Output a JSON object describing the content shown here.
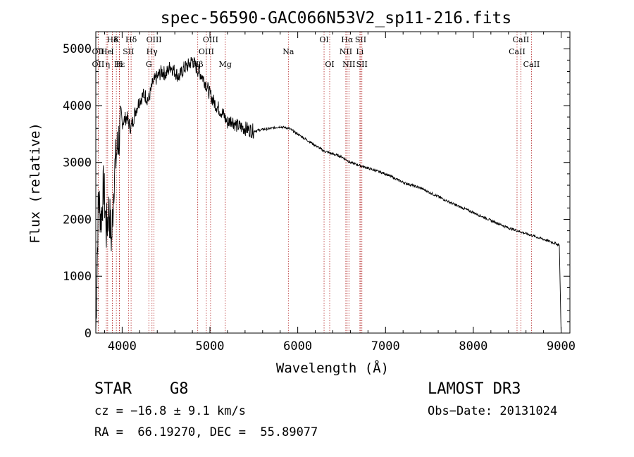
{
  "chart_data": {
    "type": "line",
    "title": "spec-56590-GAC066N53V2_sp11-216.fits",
    "xlabel": "Wavelength (Å)",
    "ylabel": "Flux (relative)",
    "xlim": [
      3700,
      9100
    ],
    "ylim": [
      0,
      5300
    ],
    "xticks": [
      4000,
      5000,
      6000,
      7000,
      8000,
      9000
    ],
    "yticks": [
      0,
      1000,
      2000,
      3000,
      4000,
      5000
    ],
    "series": [
      {
        "name": "flux",
        "x": [
          3700,
          3730,
          3760,
          3790,
          3820,
          3850,
          3880,
          3910,
          3940,
          3970,
          4000,
          4050,
          4100,
          4150,
          4200,
          4250,
          4300,
          4350,
          4400,
          4450,
          4500,
          4550,
          4600,
          4650,
          4700,
          4750,
          4800,
          4850,
          4900,
          4950,
          5000,
          5050,
          5100,
          5150,
          5200,
          5250,
          5300,
          5400,
          5500,
          5600,
          5700,
          5800,
          5900,
          6000,
          6100,
          6200,
          6300,
          6400,
          6500,
          6600,
          6700,
          6800,
          6900,
          7000,
          7200,
          7400,
          7600,
          7800,
          8000,
          8200,
          8400,
          8600,
          8800,
          8980,
          9000
        ],
        "y": [
          0,
          2400,
          2000,
          2600,
          1800,
          2200,
          1600,
          2800,
          3200,
          3500,
          3700,
          3800,
          3600,
          3900,
          4100,
          4200,
          4100,
          4400,
          4500,
          4600,
          4550,
          4700,
          4600,
          4500,
          4650,
          4700,
          4800,
          4650,
          4550,
          4400,
          4200,
          4050,
          3950,
          3850,
          3700,
          3750,
          3650,
          3600,
          3550,
          3580,
          3600,
          3630,
          3600,
          3500,
          3400,
          3300,
          3200,
          3150,
          3100,
          3000,
          2950,
          2900,
          2850,
          2800,
          2650,
          2550,
          2400,
          2250,
          2120,
          1980,
          1850,
          1750,
          1650,
          1550,
          0
        ]
      }
    ],
    "lines": [
      {
        "label": "Hδ",
        "x": 3889,
        "row": 0
      },
      {
        "label": "K",
        "x": 3934,
        "row": 0
      },
      {
        "label": "Hδ",
        "x": 4102,
        "row": 0
      },
      {
        "label": "OIII",
        "x": 4363,
        "row": 0
      },
      {
        "label": "OIII",
        "x": 5007,
        "row": 0
      },
      {
        "label": "OI",
        "x": 6300,
        "row": 0
      },
      {
        "label": "Hα",
        "x": 6563,
        "row": 0
      },
      {
        "label": "SII",
        "x": 6717,
        "row": 0
      },
      {
        "label": "CaII",
        "x": 8542,
        "row": 0
      },
      {
        "label": "OII",
        "x": 3727,
        "row": 1
      },
      {
        "label": "He",
        "x": 3820,
        "row": 1
      },
      {
        "label": "I",
        "x": 3889,
        "row": 1
      },
      {
        "label": "SII",
        "x": 4072,
        "row": 1
      },
      {
        "label": "Hγ",
        "x": 4340,
        "row": 1
      },
      {
        "label": "OIII",
        "x": 4959,
        "row": 1
      },
      {
        "label": "Na",
        "x": 5893,
        "row": 1
      },
      {
        "label": "NII",
        "x": 6548,
        "row": 1
      },
      {
        "label": "Li",
        "x": 6708,
        "row": 1
      },
      {
        "label": "CaII",
        "x": 8498,
        "row": 1
      },
      {
        "label": "OII",
        "x": 3727,
        "row": 2
      },
      {
        "label": "Hε",
        "x": 3970,
        "row": 2
      },
      {
        "label": "η",
        "x": 3835,
        "row": 2
      },
      {
        "label": "H",
        "x": 3968,
        "row": 2
      },
      {
        "label": "G",
        "x": 4304,
        "row": 2
      },
      {
        "label": "Hβ",
        "x": 4861,
        "row": 2
      },
      {
        "label": "Mg",
        "x": 5175,
        "row": 2
      },
      {
        "label": "OI",
        "x": 6364,
        "row": 2
      },
      {
        "label": "NII",
        "x": 6583,
        "row": 2
      },
      {
        "label": "SII",
        "x": 6731,
        "row": 2
      },
      {
        "label": "CaII",
        "x": 8662,
        "row": 2
      }
    ]
  },
  "info": {
    "object_class": "STAR",
    "subclass": "G8",
    "survey": "LAMOST DR3",
    "redshift": "cz = −16.8 ± 9.1 km/s",
    "obs_date": "Obs−Date: 20131024",
    "coords": "RA =  66.19270, DEC =  55.89077"
  }
}
